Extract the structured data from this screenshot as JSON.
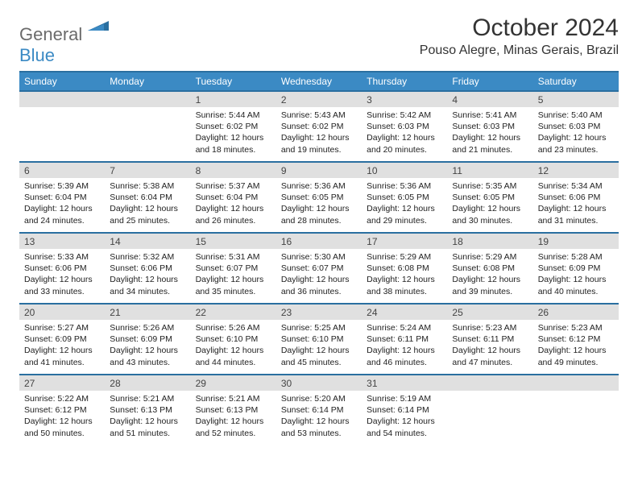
{
  "brand": {
    "part1": "General",
    "part2": "Blue"
  },
  "title": "October 2024",
  "location": "Pouso Alegre, Minas Gerais, Brazil",
  "colors": {
    "header_bg": "#3b8ac4",
    "header_border": "#2a6fa0",
    "daynum_bg": "#e0e0e0",
    "text": "#222222"
  },
  "day_names": [
    "Sunday",
    "Monday",
    "Tuesday",
    "Wednesday",
    "Thursday",
    "Friday",
    "Saturday"
  ],
  "weeks": [
    [
      {
        "empty": true
      },
      {
        "empty": true
      },
      {
        "n": "1",
        "sr": "5:44 AM",
        "ss": "6:02 PM",
        "dl": "12 hours and 18 minutes."
      },
      {
        "n": "2",
        "sr": "5:43 AM",
        "ss": "6:02 PM",
        "dl": "12 hours and 19 minutes."
      },
      {
        "n": "3",
        "sr": "5:42 AM",
        "ss": "6:03 PM",
        "dl": "12 hours and 20 minutes."
      },
      {
        "n": "4",
        "sr": "5:41 AM",
        "ss": "6:03 PM",
        "dl": "12 hours and 21 minutes."
      },
      {
        "n": "5",
        "sr": "5:40 AM",
        "ss": "6:03 PM",
        "dl": "12 hours and 23 minutes."
      }
    ],
    [
      {
        "n": "6",
        "sr": "5:39 AM",
        "ss": "6:04 PM",
        "dl": "12 hours and 24 minutes."
      },
      {
        "n": "7",
        "sr": "5:38 AM",
        "ss": "6:04 PM",
        "dl": "12 hours and 25 minutes."
      },
      {
        "n": "8",
        "sr": "5:37 AM",
        "ss": "6:04 PM",
        "dl": "12 hours and 26 minutes."
      },
      {
        "n": "9",
        "sr": "5:36 AM",
        "ss": "6:05 PM",
        "dl": "12 hours and 28 minutes."
      },
      {
        "n": "10",
        "sr": "5:36 AM",
        "ss": "6:05 PM",
        "dl": "12 hours and 29 minutes."
      },
      {
        "n": "11",
        "sr": "5:35 AM",
        "ss": "6:05 PM",
        "dl": "12 hours and 30 minutes."
      },
      {
        "n": "12",
        "sr": "5:34 AM",
        "ss": "6:06 PM",
        "dl": "12 hours and 31 minutes."
      }
    ],
    [
      {
        "n": "13",
        "sr": "5:33 AM",
        "ss": "6:06 PM",
        "dl": "12 hours and 33 minutes."
      },
      {
        "n": "14",
        "sr": "5:32 AM",
        "ss": "6:06 PM",
        "dl": "12 hours and 34 minutes."
      },
      {
        "n": "15",
        "sr": "5:31 AM",
        "ss": "6:07 PM",
        "dl": "12 hours and 35 minutes."
      },
      {
        "n": "16",
        "sr": "5:30 AM",
        "ss": "6:07 PM",
        "dl": "12 hours and 36 minutes."
      },
      {
        "n": "17",
        "sr": "5:29 AM",
        "ss": "6:08 PM",
        "dl": "12 hours and 38 minutes."
      },
      {
        "n": "18",
        "sr": "5:29 AM",
        "ss": "6:08 PM",
        "dl": "12 hours and 39 minutes."
      },
      {
        "n": "19",
        "sr": "5:28 AM",
        "ss": "6:09 PM",
        "dl": "12 hours and 40 minutes."
      }
    ],
    [
      {
        "n": "20",
        "sr": "5:27 AM",
        "ss": "6:09 PM",
        "dl": "12 hours and 41 minutes."
      },
      {
        "n": "21",
        "sr": "5:26 AM",
        "ss": "6:09 PM",
        "dl": "12 hours and 43 minutes."
      },
      {
        "n": "22",
        "sr": "5:26 AM",
        "ss": "6:10 PM",
        "dl": "12 hours and 44 minutes."
      },
      {
        "n": "23",
        "sr": "5:25 AM",
        "ss": "6:10 PM",
        "dl": "12 hours and 45 minutes."
      },
      {
        "n": "24",
        "sr": "5:24 AM",
        "ss": "6:11 PM",
        "dl": "12 hours and 46 minutes."
      },
      {
        "n": "25",
        "sr": "5:23 AM",
        "ss": "6:11 PM",
        "dl": "12 hours and 47 minutes."
      },
      {
        "n": "26",
        "sr": "5:23 AM",
        "ss": "6:12 PM",
        "dl": "12 hours and 49 minutes."
      }
    ],
    [
      {
        "n": "27",
        "sr": "5:22 AM",
        "ss": "6:12 PM",
        "dl": "12 hours and 50 minutes."
      },
      {
        "n": "28",
        "sr": "5:21 AM",
        "ss": "6:13 PM",
        "dl": "12 hours and 51 minutes."
      },
      {
        "n": "29",
        "sr": "5:21 AM",
        "ss": "6:13 PM",
        "dl": "12 hours and 52 minutes."
      },
      {
        "n": "30",
        "sr": "5:20 AM",
        "ss": "6:14 PM",
        "dl": "12 hours and 53 minutes."
      },
      {
        "n": "31",
        "sr": "5:19 AM",
        "ss": "6:14 PM",
        "dl": "12 hours and 54 minutes."
      },
      {
        "empty": true
      },
      {
        "empty": true
      }
    ]
  ],
  "labels": {
    "sunrise": "Sunrise:",
    "sunset": "Sunset:",
    "daylight": "Daylight:"
  }
}
